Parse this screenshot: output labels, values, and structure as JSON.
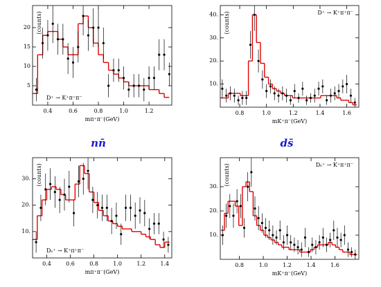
{
  "group_labels": [
    "nn̄",
    "ds̄"
  ],
  "chart_data": [
    {
      "type": "scatter",
      "x_label": "mπ⁺π⁻(GeV)",
      "y_label": "(counts)",
      "annotation": "D⁺ → K⁺π⁺π⁻",
      "annotation_corner": "lower left",
      "xlim": [
        0.28,
        1.38
      ],
      "ylim": [
        0,
        25.7
      ],
      "xticks": [
        0.4,
        0.6,
        0.8,
        {
          "value": 1,
          "label": "1.0"
        },
        1.2
      ],
      "yticks": [
        5,
        10,
        15,
        20
      ],
      "points": {
        "color": "#000000",
        "x": [
          0.31,
          0.36,
          0.4,
          0.44,
          0.48,
          0.52,
          0.56,
          0.6,
          0.64,
          0.68,
          0.72,
          0.76,
          0.8,
          0.84,
          0.88,
          0.92,
          0.96,
          1.0,
          1.04,
          1.08,
          1.12,
          1.16,
          1.2,
          1.24,
          1.28,
          1.32,
          1.36
        ],
        "values": [
          4,
          16,
          18,
          21,
          17,
          17,
          12,
          11,
          15,
          23,
          18,
          20,
          20,
          16,
          5,
          9,
          9,
          7,
          4,
          5,
          5,
          4,
          7,
          7,
          13,
          13,
          8
        ],
        "errors": [
          3,
          4,
          4,
          5,
          4,
          4,
          4,
          4,
          4,
          5,
          4,
          5,
          5,
          4,
          3,
          3,
          3,
          3,
          2,
          3,
          3,
          3,
          3,
          3,
          4,
          4,
          3
        ]
      },
      "fit": {
        "color": "#e00000",
        "bins": [
          0.28,
          0.32,
          0.36,
          0.4,
          0.44,
          0.48,
          0.52,
          0.56,
          0.6,
          0.64,
          0.68,
          0.72,
          0.76,
          0.8,
          0.84,
          0.88,
          0.92,
          0.96,
          1.0,
          1.04,
          1.08,
          1.12,
          1.16,
          1.2,
          1.24,
          1.28,
          1.32,
          1.36
        ],
        "values": [
          3,
          13,
          18,
          19,
          19,
          17,
          15,
          13,
          13,
          21,
          23,
          20,
          16,
          13,
          11,
          9,
          8,
          7,
          6,
          5,
          5,
          5,
          5,
          4,
          4,
          3,
          2
        ]
      }
    },
    {
      "type": "scatter",
      "x_label": "mK⁺π⁻(GeV)",
      "y_label": "(counts)",
      "annotation": "D⁺ → K⁺π⁺π⁻",
      "annotation_corner": "upper right",
      "xlim": [
        0.655,
        1.69
      ],
      "ylim": [
        0,
        44
      ],
      "xticks": [
        0.8,
        {
          "value": 1,
          "label": "1.0"
        },
        1.2,
        1.4,
        1.6
      ],
      "yticks": [
        {
          "value": 10,
          "label": "10."
        },
        {
          "value": 20,
          "label": "20."
        },
        {
          "value": 30,
          "label": "30."
        },
        {
          "value": 40,
          "label": "40."
        }
      ],
      "points": {
        "color": "#000000",
        "x": [
          0.67,
          0.7,
          0.73,
          0.76,
          0.79,
          0.82,
          0.85,
          0.88,
          0.91,
          0.94,
          0.97,
          1.0,
          1.03,
          1.06,
          1.09,
          1.12,
          1.15,
          1.18,
          1.21,
          1.24,
          1.27,
          1.3,
          1.33,
          1.36,
          1.39,
          1.42,
          1.45,
          1.48,
          1.51,
          1.54,
          1.57,
          1.6,
          1.63,
          1.66
        ],
        "values": [
          8,
          5,
          6,
          5,
          3,
          4,
          4,
          27,
          40,
          20,
          12,
          7,
          9,
          6,
          5,
          6,
          5,
          3,
          7,
          4,
          8,
          3,
          4,
          5,
          8,
          9,
          3,
          5,
          6,
          7,
          9,
          10,
          5,
          2
        ],
        "errors": [
          4,
          3,
          3,
          3,
          2,
          3,
          3,
          6,
          7,
          5,
          4,
          3,
          3,
          3,
          3,
          3,
          3,
          2,
          3,
          2,
          3,
          2,
          2,
          3,
          3,
          3,
          2,
          3,
          3,
          3,
          3,
          4,
          3,
          2
        ]
      },
      "fit": {
        "color": "#e00000",
        "bins": [
          0.655,
          0.685,
          0.715,
          0.745,
          0.775,
          0.805,
          0.835,
          0.865,
          0.895,
          0.925,
          0.955,
          0.985,
          1.015,
          1.045,
          1.075,
          1.105,
          1.135,
          1.165,
          1.195,
          1.225,
          1.255,
          1.285,
          1.315,
          1.345,
          1.375,
          1.405,
          1.435,
          1.465,
          1.495,
          1.525,
          1.555,
          1.585,
          1.615,
          1.645,
          1.675
        ],
        "values": [
          4,
          4,
          6,
          6,
          6,
          5,
          5,
          20,
          40,
          28,
          19,
          13,
          10,
          8,
          7,
          6,
          5,
          5,
          4,
          4,
          4,
          4,
          4,
          4,
          4,
          5,
          5,
          5,
          5,
          4,
          3,
          3,
          2,
          1
        ]
      }
    },
    {
      "type": "scatter",
      "x_label": "mπ⁺π⁻(GeV)",
      "y_label": "(counts)",
      "annotation": "Dₛ⁺ → K⁺π⁺π⁻",
      "annotation_corner": "lower left",
      "xlim": [
        0.28,
        1.46
      ],
      "ylim": [
        0,
        38
      ],
      "xticks": [
        0.4,
        0.6,
        0.8,
        {
          "value": 1,
          "label": "1.0"
        },
        1.2,
        1.4
      ],
      "yticks": [
        {
          "value": 10,
          "label": "10."
        },
        {
          "value": 20,
          "label": "20."
        },
        {
          "value": 30,
          "label": "30."
        }
      ],
      "points": {
        "color": "#000000",
        "x": [
          0.31,
          0.35,
          0.39,
          0.43,
          0.47,
          0.51,
          0.55,
          0.59,
          0.63,
          0.67,
          0.71,
          0.75,
          0.79,
          0.83,
          0.87,
          0.91,
          0.95,
          0.99,
          1.03,
          1.07,
          1.11,
          1.15,
          1.19,
          1.23,
          1.27,
          1.31,
          1.35,
          1.39,
          1.43
        ],
        "values": [
          6,
          19,
          26,
          28,
          25,
          22,
          24,
          27,
          17,
          29,
          30,
          33,
          22,
          20,
          19,
          19,
          14,
          16,
          9,
          19,
          19,
          16,
          18,
          17,
          11,
          13,
          13,
          7,
          5
        ],
        "errors": [
          4,
          5,
          6,
          6,
          6,
          5,
          6,
          6,
          5,
          6,
          6,
          7,
          5,
          5,
          5,
          5,
          5,
          5,
          4,
          5,
          5,
          5,
          5,
          5,
          4,
          4,
          4,
          3,
          3
        ]
      },
      "fit": {
        "color": "#e00000",
        "bins": [
          0.28,
          0.32,
          0.36,
          0.4,
          0.44,
          0.48,
          0.52,
          0.56,
          0.6,
          0.64,
          0.68,
          0.72,
          0.76,
          0.8,
          0.84,
          0.88,
          0.92,
          0.96,
          1.0,
          1.04,
          1.08,
          1.12,
          1.16,
          1.2,
          1.24,
          1.28,
          1.32,
          1.36,
          1.4,
          1.44
        ],
        "values": [
          7,
          16,
          22,
          26,
          27,
          26,
          24,
          22,
          22,
          28,
          35,
          32,
          25,
          21,
          18,
          16,
          14,
          13,
          12,
          11,
          11,
          10,
          10,
          9,
          8,
          7,
          5,
          4,
          6
        ]
      }
    },
    {
      "type": "scatter",
      "x_label": "mK⁺π⁻(GeV)",
      "y_label": "(counts)",
      "annotation": "Dₛ⁺ → K⁺π⁺π⁻",
      "annotation_corner": "upper right",
      "xlim": [
        0.64,
        1.8
      ],
      "ylim": [
        0,
        42
      ],
      "xticks": [
        0.8,
        {
          "value": 1,
          "label": "1.0"
        },
        1.2,
        1.4,
        1.6
      ],
      "yticks": [
        {
          "value": 10,
          "label": "10."
        },
        {
          "value": 20,
          "label": "20."
        },
        {
          "value": 30,
          "label": "30."
        }
      ],
      "points": {
        "color": "#000000",
        "x": [
          0.66,
          0.69,
          0.72,
          0.75,
          0.78,
          0.81,
          0.84,
          0.87,
          0.9,
          0.93,
          0.96,
          0.99,
          1.02,
          1.05,
          1.08,
          1.11,
          1.14,
          1.17,
          1.2,
          1.23,
          1.26,
          1.29,
          1.32,
          1.35,
          1.38,
          1.41,
          1.44,
          1.47,
          1.5,
          1.53,
          1.56,
          1.59,
          1.62,
          1.65,
          1.68,
          1.71,
          1.74,
          1.77
        ],
        "values": [
          10,
          18,
          22,
          18,
          24,
          22,
          13,
          30,
          36,
          21,
          17,
          15,
          13,
          12,
          10,
          9,
          12,
          7,
          10,
          7,
          6,
          5,
          4,
          9,
          3,
          6,
          5,
          7,
          9,
          6,
          8,
          12,
          9,
          8,
          10,
          4,
          3,
          2
        ],
        "errors": [
          4,
          5,
          5,
          5,
          5,
          5,
          4,
          6,
          6,
          5,
          5,
          4,
          4,
          4,
          4,
          3,
          4,
          3,
          4,
          3,
          3,
          3,
          3,
          4,
          2,
          3,
          3,
          3,
          4,
          3,
          3,
          4,
          4,
          3,
          4,
          3,
          2,
          2
        ]
      },
      "fit": {
        "color": "#e00000",
        "bins": [
          0.645,
          0.675,
          0.705,
          0.735,
          0.765,
          0.795,
          0.825,
          0.855,
          0.885,
          0.915,
          0.945,
          0.975,
          1.005,
          1.035,
          1.065,
          1.095,
          1.125,
          1.155,
          1.185,
          1.215,
          1.245,
          1.275,
          1.305,
          1.335,
          1.365,
          1.395,
          1.425,
          1.455,
          1.485,
          1.515,
          1.545,
          1.575,
          1.605,
          1.635,
          1.665,
          1.695,
          1.725,
          1.755,
          1.785
        ],
        "values": [
          12,
          19,
          24,
          24,
          22,
          14,
          30,
          32,
          28,
          18,
          14,
          12,
          10,
          9,
          8,
          7,
          6,
          5,
          5,
          4,
          4,
          4,
          3,
          3,
          3,
          4,
          5,
          6,
          6,
          6,
          7,
          6,
          5,
          4,
          3,
          3,
          2,
          2
        ]
      }
    }
  ]
}
